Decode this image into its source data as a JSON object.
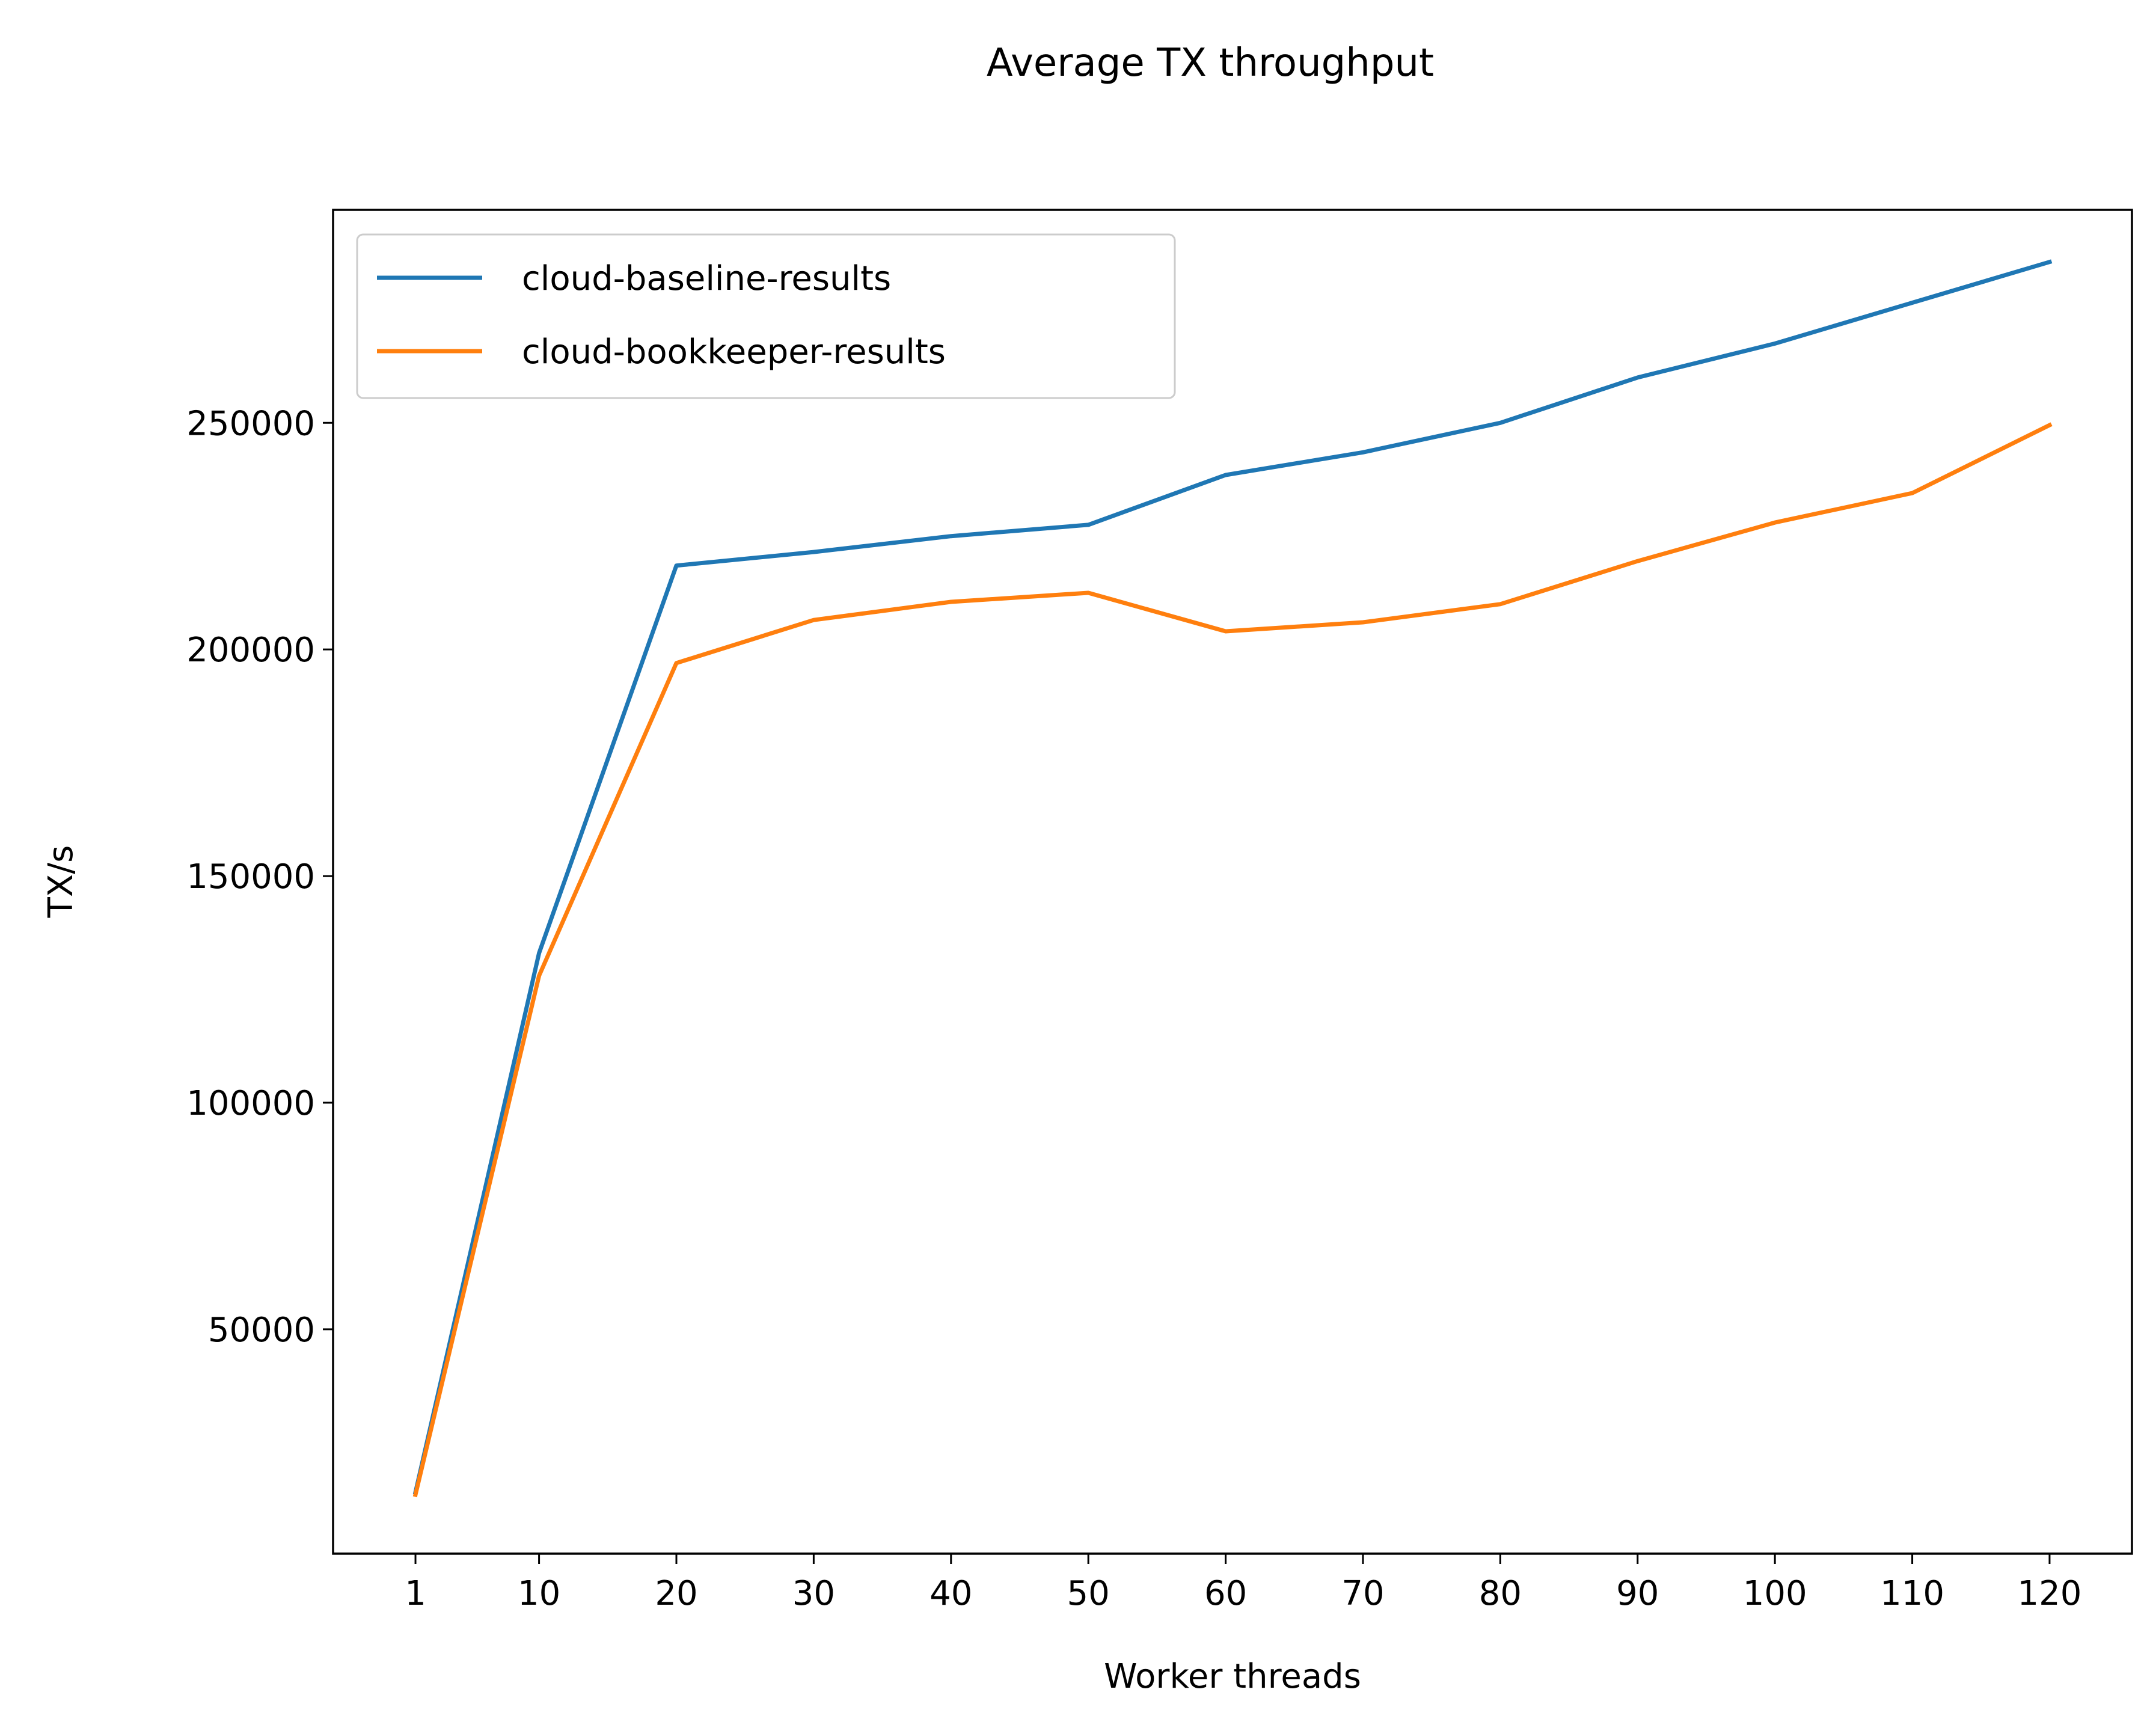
{
  "chart_data": {
    "type": "line",
    "title": "Average TX throughput",
    "xlabel": "Worker threads",
    "ylabel": "TX/s",
    "x": [
      1,
      10,
      20,
      30,
      40,
      50,
      60,
      70,
      80,
      90,
      100,
      110,
      120
    ],
    "x_tick_labels": [
      "1",
      "10",
      "20",
      "30",
      "40",
      "50",
      "60",
      "70",
      "80",
      "90",
      "100",
      "110",
      "120"
    ],
    "y_ticks": [
      50000,
      100000,
      150000,
      200000,
      250000
    ],
    "y_tick_labels": [
      "50000",
      "100000",
      "150000",
      "200000",
      "250000"
    ],
    "xlim": [
      -5,
      126
    ],
    "ylim": [
      500,
      297000
    ],
    "grid": false,
    "legend_position": "upper left",
    "series": [
      {
        "name": "cloud-baseline-results",
        "color": "#1f77b4",
        "values": [
          14000,
          133000,
          218500,
          221500,
          225000,
          227500,
          238500,
          243500,
          250000,
          260000,
          267500,
          276500,
          285500
        ]
      },
      {
        "name": "cloud-bookkeeper-results",
        "color": "#ff7f0e",
        "values": [
          13500,
          128000,
          197000,
          206500,
          210500,
          212500,
          204000,
          206000,
          210000,
          219500,
          228000,
          234500,
          249500
        ]
      }
    ]
  }
}
